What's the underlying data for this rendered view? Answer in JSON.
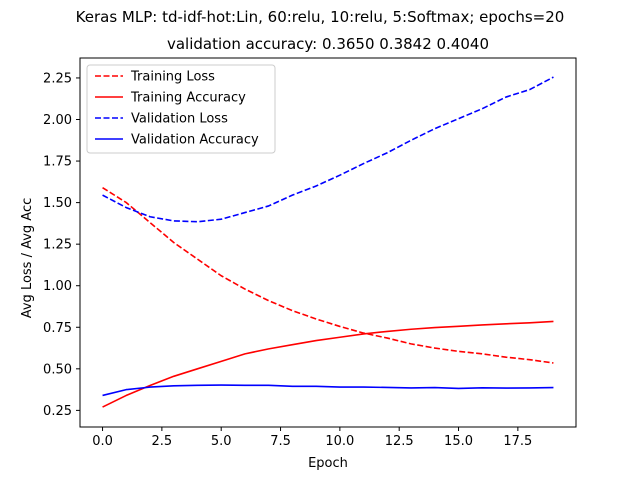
{
  "chart_data": {
    "type": "line",
    "title": "Keras MLP: td-idf-hot:Lin, 60:relu, 10:relu, 5:Softmax; epochs=20",
    "subtitle": "validation accuracy:  0.3650  0.3842  0.4040",
    "xlabel": "Epoch",
    "ylabel": "Avg Loss / Avg Acc",
    "xlim": [
      -0.95,
      19.95
    ],
    "ylim": [
      0.15,
      2.37
    ],
    "xticks": [
      0.0,
      2.5,
      5.0,
      7.5,
      10.0,
      12.5,
      15.0,
      17.5
    ],
    "xtick_labels": [
      "0.0",
      "2.5",
      "5.0",
      "7.5",
      "10.0",
      "12.5",
      "15.0",
      "17.5"
    ],
    "yticks": [
      0.25,
      0.5,
      0.75,
      1.0,
      1.25,
      1.5,
      1.75,
      2.0,
      2.25
    ],
    "ytick_labels": [
      "0.25",
      "0.50",
      "0.75",
      "1.00",
      "1.25",
      "1.50",
      "1.75",
      "2.00",
      "2.25"
    ],
    "grid": false,
    "legend_position": "top-left",
    "x": [
      0,
      1,
      2,
      3,
      4,
      5,
      6,
      7,
      8,
      9,
      10,
      11,
      12,
      13,
      14,
      15,
      16,
      17,
      18,
      19
    ],
    "series": [
      {
        "name": "Training Loss",
        "color": "#ff0000",
        "dash": "dashed",
        "values": [
          1.59,
          1.5,
          1.38,
          1.26,
          1.16,
          1.06,
          0.98,
          0.91,
          0.85,
          0.8,
          0.755,
          0.715,
          0.685,
          0.65,
          0.625,
          0.605,
          0.59,
          0.57,
          0.555,
          0.535
        ]
      },
      {
        "name": "Training Accuracy",
        "color": "#ff0000",
        "dash": "solid",
        "values": [
          0.27,
          0.34,
          0.4,
          0.455,
          0.5,
          0.545,
          0.59,
          0.62,
          0.645,
          0.67,
          0.69,
          0.71,
          0.725,
          0.738,
          0.748,
          0.756,
          0.764,
          0.771,
          0.777,
          0.785
        ]
      },
      {
        "name": "Validation Loss",
        "color": "#0000ff",
        "dash": "dashed",
        "values": [
          1.545,
          1.47,
          1.415,
          1.39,
          1.385,
          1.4,
          1.44,
          1.48,
          1.545,
          1.6,
          1.665,
          1.735,
          1.8,
          1.875,
          1.945,
          2.005,
          2.065,
          2.135,
          2.18,
          2.255
        ]
      },
      {
        "name": "Validation Accuracy",
        "color": "#0000ff",
        "dash": "solid",
        "values": [
          0.34,
          0.375,
          0.39,
          0.398,
          0.401,
          0.402,
          0.401,
          0.401,
          0.395,
          0.395,
          0.39,
          0.39,
          0.388,
          0.385,
          0.387,
          0.382,
          0.386,
          0.384,
          0.385,
          0.387
        ]
      }
    ]
  }
}
